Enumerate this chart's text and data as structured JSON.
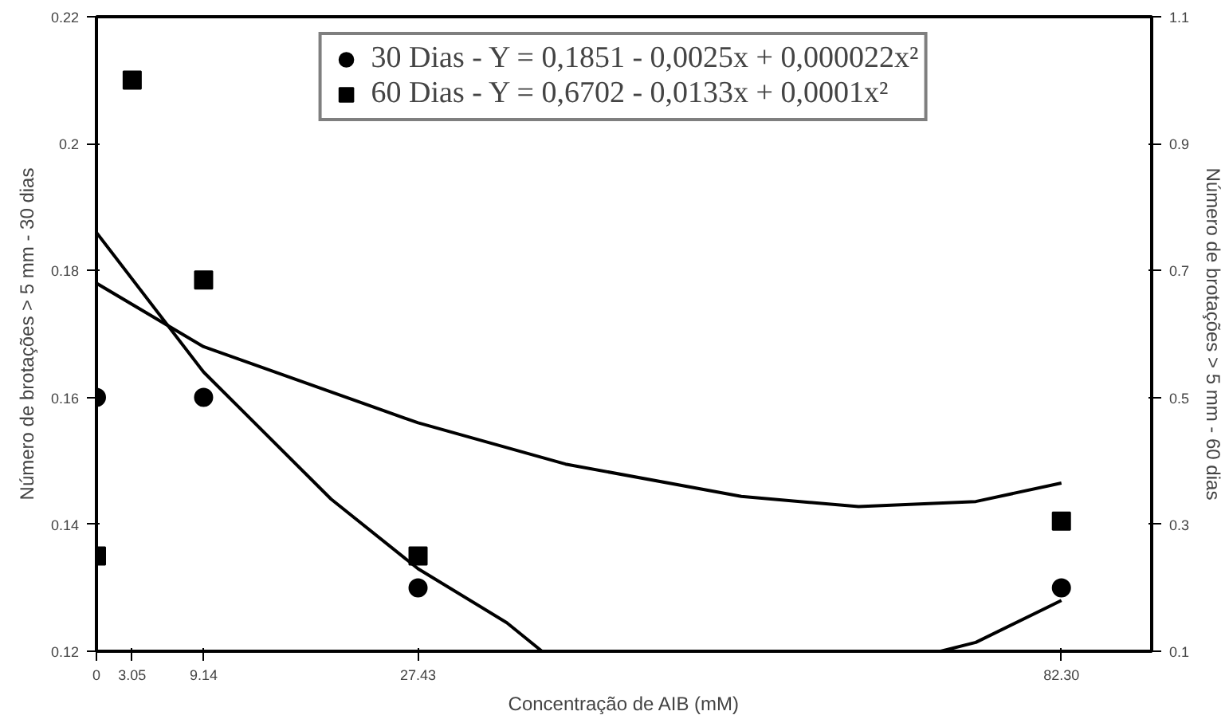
{
  "chart_data": {
    "type": "scatter",
    "xlabel": "Concentração de AIB (mM)",
    "ylabel": "Número de brotações > 5 mm - 30 dias",
    "y2label": "Número de brotações > 5 mm - 60 dias",
    "xlim": [
      0,
      90
    ],
    "xticks": [
      0,
      3.05,
      9.14,
      27.43,
      {
        "value": 82.3,
        "label": "82.30"
      }
    ],
    "ylim": [
      0.12,
      0.22
    ],
    "yticks": [
      0.12,
      0.14,
      0.16,
      0.18,
      0.2,
      0.22
    ],
    "y2lim": [
      0.1,
      1.1
    ],
    "y2ticks": [
      0.1,
      0.3,
      0.5,
      0.7,
      0.9,
      1.1
    ],
    "grid": false,
    "legend": "top",
    "series": [
      {
        "name": "30 Dias - Y = 0,1851 - 0,0025x + 0,000022x²",
        "color": "#000000",
        "marker": "circle",
        "x": [
          0,
          9.14,
          27.43,
          82.3
        ],
        "values": [
          0.16,
          0.16,
          0.13,
          0.13
        ]
      },
      {
        "name": "60 Dias - Y = 0,6702 - 0,0133x + 0,0001x²",
        "color": "#000000",
        "marker": "square",
        "axis": "y2",
        "x": [
          0,
          3.05,
          9.14,
          27.43,
          82.3
        ],
        "values": [
          0.25,
          1.0,
          0.685,
          0.25,
          0.305
        ]
      },
      {
        "type": "line",
        "color": "#000000",
        "x": [
          0,
          9.14,
          20,
          27.43,
          35,
          38,
          55,
          72,
          75,
          82.3
        ],
        "values": [
          0.186,
          0.164,
          0.144,
          0.133,
          0.1245,
          0.12,
          null,
          0.12,
          0.1214,
          0.128
        ]
      },
      {
        "type": "line",
        "color": "#000000",
        "axis": "y2",
        "x": [
          0,
          9.14,
          27.43,
          40,
          55,
          65,
          75,
          82.3
        ],
        "values": [
          0.68,
          0.58,
          0.46,
          0.395,
          0.344,
          0.328,
          0.336,
          0.365
        ]
      }
    ]
  }
}
